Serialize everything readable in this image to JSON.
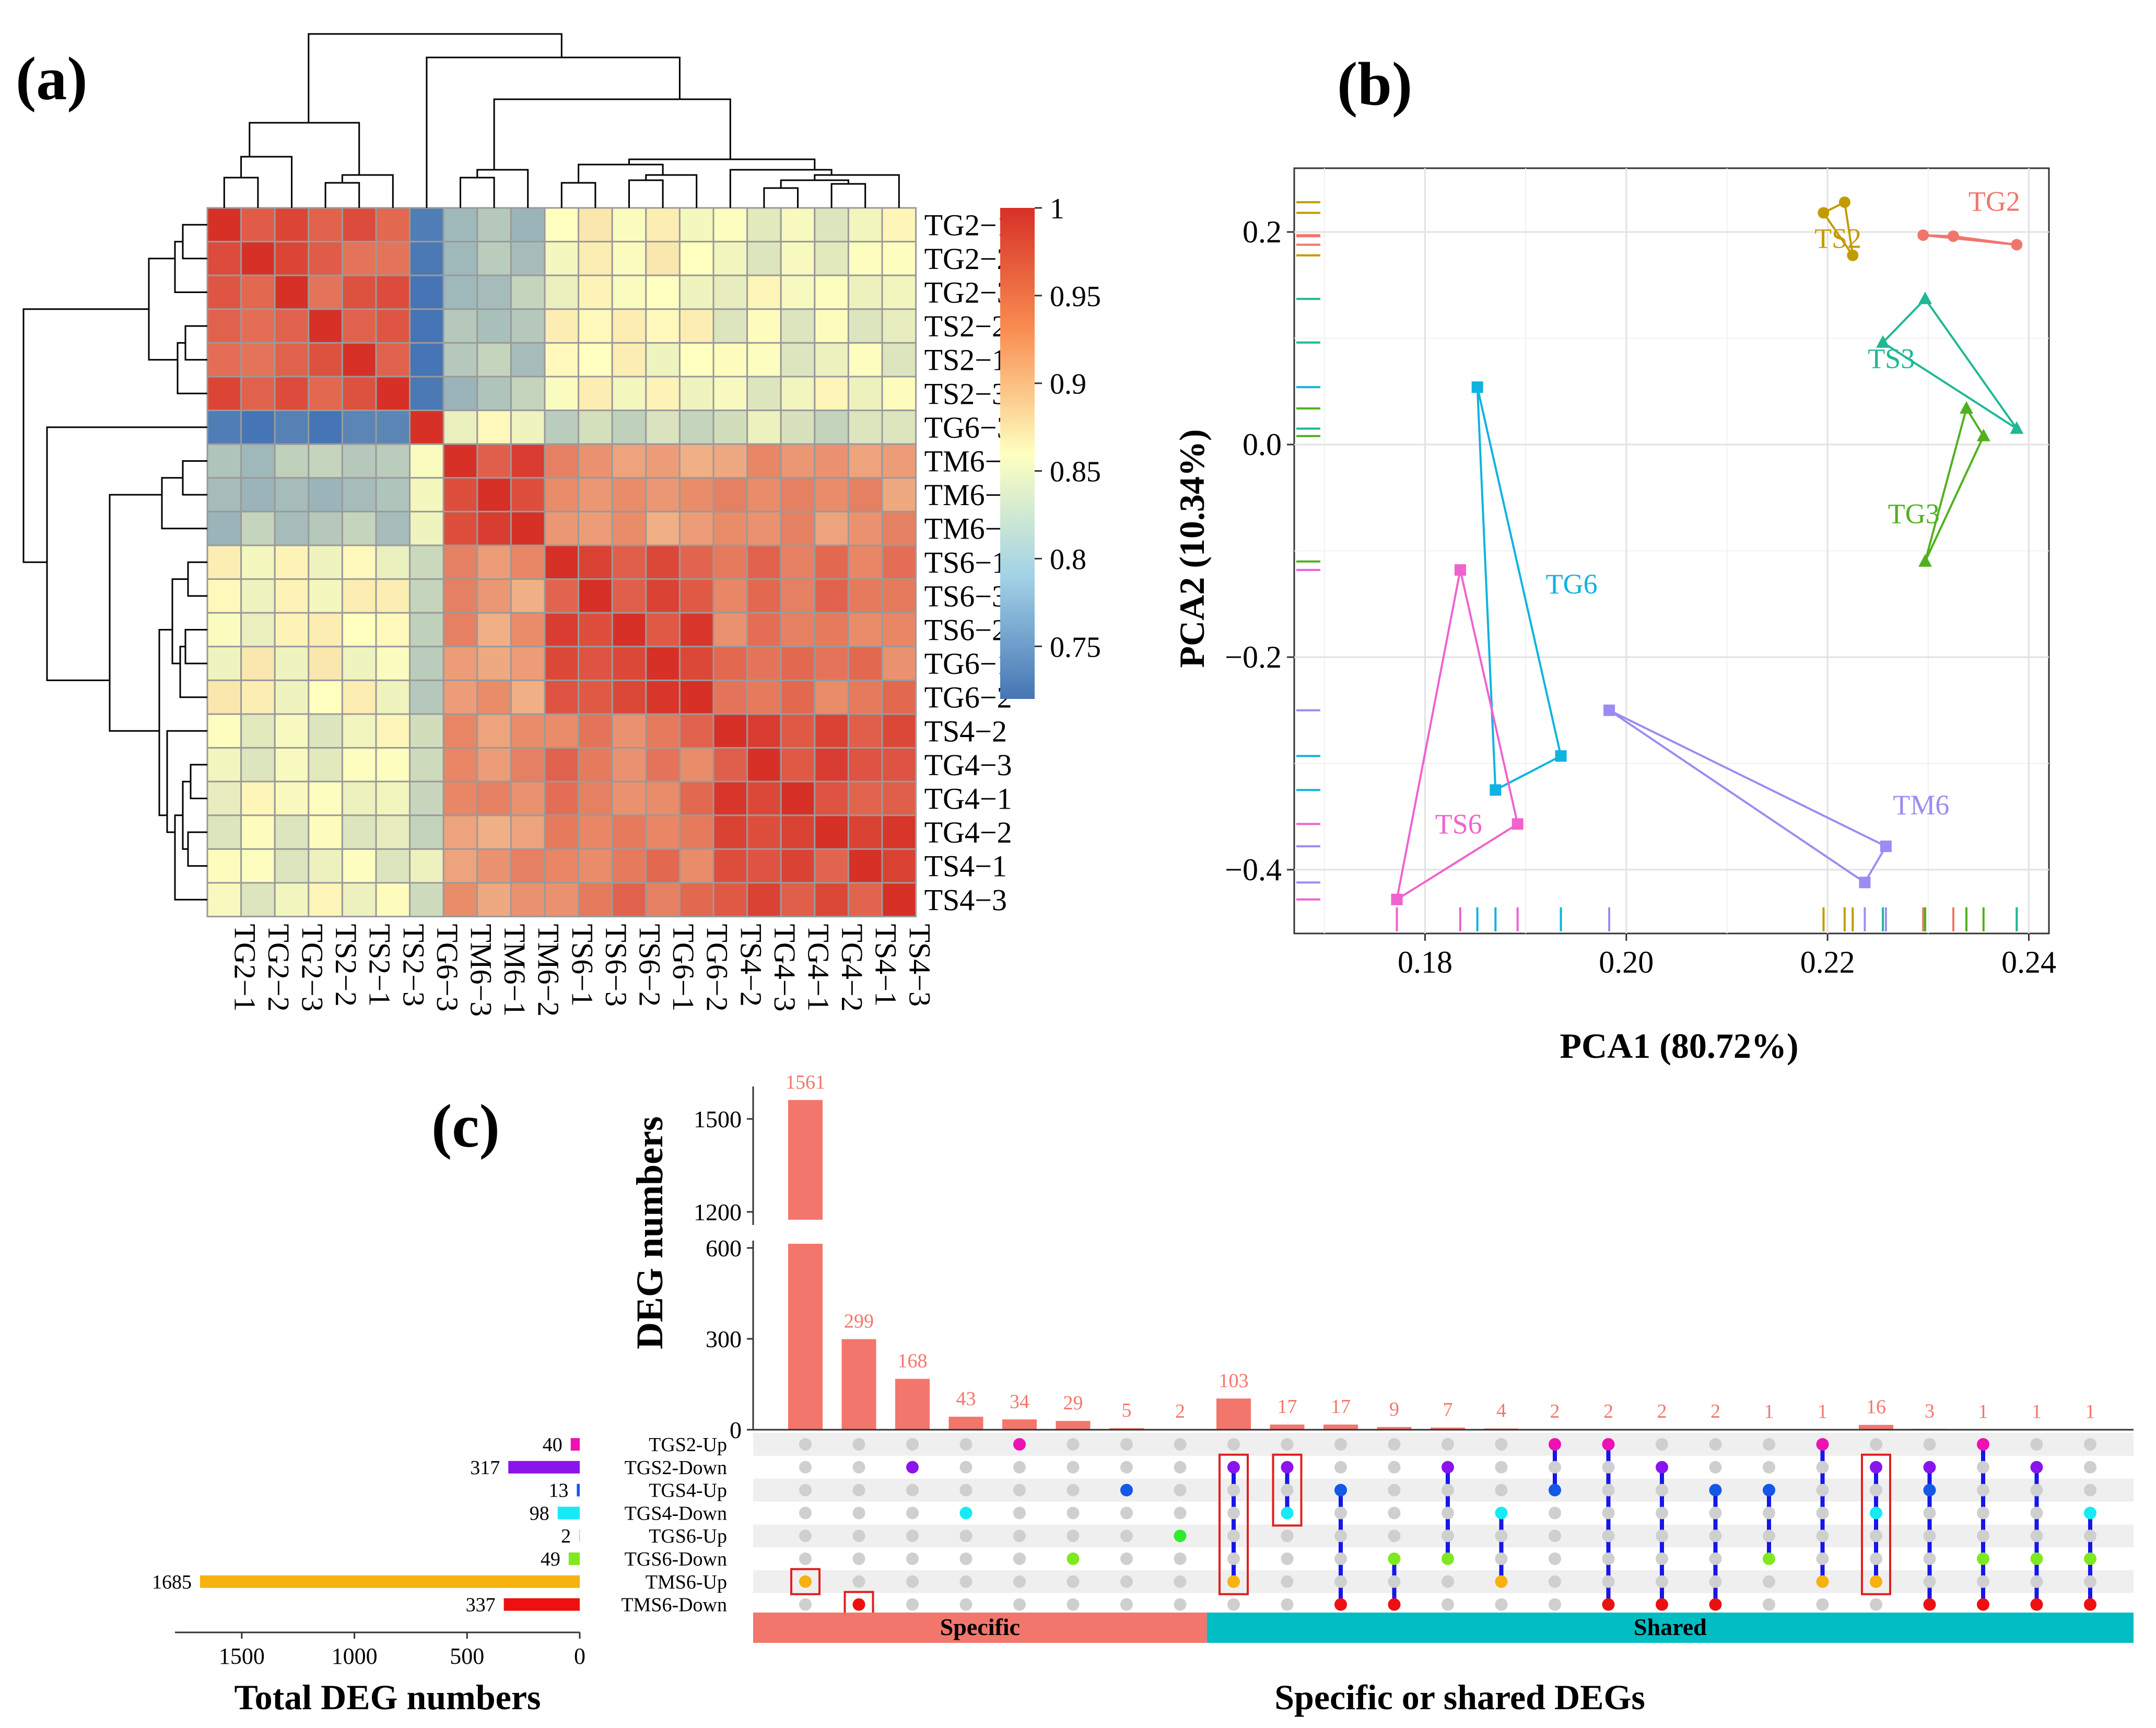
{
  "panels": {
    "a": {
      "label": "(a)"
    },
    "b": {
      "label": "(b)"
    },
    "c": {
      "label": "(c)"
    }
  },
  "chart_data": [
    {
      "type": "heatmap",
      "panel": "(a)",
      "samples": [
        "TG2−1",
        "TG2−2",
        "TG2−3",
        "TS2−2",
        "TS2−1",
        "TS2−3",
        "TG6−3",
        "TM6−3",
        "TM6−1",
        "TM6−2",
        "TS6−1",
        "TS6−3",
        "TS6−2",
        "TG6−1",
        "TG6−2",
        "TS4−2",
        "TG4−3",
        "TG4−1",
        "TG4−2",
        "TS4−1",
        "TS4−3"
      ],
      "groups": [
        [
          0,
          5
        ],
        [
          6,
          6
        ],
        [
          7,
          9
        ],
        [
          10,
          14
        ],
        [
          15,
          20
        ]
      ],
      "block_values": [
        [
          0.97,
          0.72,
          0.8,
          0.86,
          0.85
        ],
        [
          0.72,
          1.0,
          0.86,
          0.82,
          0.83
        ],
        [
          0.8,
          0.86,
          0.98,
          0.93,
          0.93
        ],
        [
          0.86,
          0.82,
          0.93,
          0.98,
          0.95
        ],
        [
          0.85,
          0.83,
          0.93,
          0.95,
          0.98
        ]
      ],
      "legend": {
        "ticks": [
          "1",
          "0.95",
          "0.9",
          "0.85",
          "0.8",
          "0.75"
        ],
        "values": [
          1,
          0.95,
          0.9,
          0.85,
          0.8,
          0.75
        ],
        "min": 0.72,
        "max": 1.0
      },
      "colors": {
        "low": "#4575b4",
        "mid": "#ffffbf",
        "high": "#d73027"
      }
    },
    {
      "type": "scatter",
      "panel": "(b)",
      "xlabel": "PCA1 (80.72%)",
      "ylabel": "PCA2 (10.34%)",
      "xlim": [
        0.167,
        0.242
      ],
      "ylim": [
        -0.46,
        0.26
      ],
      "xticks": [
        0.18,
        0.2,
        0.22,
        0.24
      ],
      "xtick_labels": [
        "0.18",
        "0.20",
        "0.22",
        "0.24"
      ],
      "yticks": [
        0.2,
        0.0,
        -0.2,
        -0.4
      ],
      "ytick_labels": [
        "0.2",
        "0.0",
        "−0.2",
        "−0.4"
      ],
      "series": [
        {
          "name": "TG2",
          "color": "#f0766d",
          "shape": "circle",
          "points": [
            [
              0.2295,
              0.197
            ],
            [
              0.2325,
              0.196
            ],
            [
              0.2388,
              0.188
            ]
          ],
          "label_pos": [
            0.234,
            0.22
          ]
        },
        {
          "name": "TS2",
          "color": "#c39b00",
          "shape": "circle",
          "points": [
            [
              0.2196,
              0.218
            ],
            [
              0.2217,
              0.228
            ],
            [
              0.2225,
              0.178
            ]
          ],
          "label_pos": [
            0.2187,
            0.185
          ]
        },
        {
          "name": "TS3",
          "color": "#1fb894",
          "shape": "triangle",
          "points": [
            [
              0.2255,
              0.096
            ],
            [
              0.2297,
              0.137
            ],
            [
              0.2388,
              0.015
            ]
          ],
          "label_pos": [
            0.224,
            0.072
          ]
        },
        {
          "name": "TG3",
          "color": "#50b01f",
          "shape": "triangle",
          "points": [
            [
              0.2297,
              -0.11
            ],
            [
              0.2338,
              0.034
            ],
            [
              0.2355,
              0.008
            ]
          ],
          "label_pos": [
            0.226,
            -0.074
          ]
        },
        {
          "name": "TG6",
          "color": "#0fb3e0",
          "shape": "square",
          "points": [
            [
              0.1852,
              0.054
            ],
            [
              0.187,
              -0.325
            ],
            [
              0.1935,
              -0.293
            ]
          ],
          "label_pos": [
            0.192,
            -0.14
          ]
        },
        {
          "name": "TS6",
          "color": "#f062d0",
          "shape": "square",
          "points": [
            [
              0.1772,
              -0.428
            ],
            [
              0.1835,
              -0.118
            ],
            [
              0.1892,
              -0.357
            ]
          ],
          "label_pos": [
            0.181,
            -0.366
          ]
        },
        {
          "name": "TM6",
          "color": "#9b8cf2",
          "shape": "square",
          "points": [
            [
              0.1983,
              -0.25
            ],
            [
              0.2237,
              -0.412
            ],
            [
              0.2258,
              -0.378
            ]
          ],
          "label_pos": [
            0.2265,
            -0.348
          ]
        }
      ]
    },
    {
      "type": "bar",
      "panel": "(c)",
      "subtype": "upset",
      "ylabel": "DEG numbers",
      "xlabel": "Specific or shared DEGs",
      "yticks_upper": [
        1200,
        1500
      ],
      "yticks_lower": [
        0,
        300,
        600
      ],
      "intersection_values": [
        1561,
        299,
        168,
        43,
        34,
        29,
        5,
        2,
        103,
        17,
        17,
        9,
        7,
        4,
        2,
        2,
        2,
        2,
        1,
        1,
        16,
        3,
        1,
        1,
        1
      ],
      "sets": [
        "TGS2-Up",
        "TGS2-Down",
        "TGS4-Up",
        "TGS4-Down",
        "TGS6-Up",
        "TGS6-Down",
        "TMS6-Up",
        "TMS6-Down"
      ],
      "set_sizes": [
        40,
        317,
        13,
        98,
        2,
        49,
        1685,
        337
      ],
      "set_colors": [
        "#ee11b4",
        "#8a14ec",
        "#1557e6",
        "#16eaf5",
        "#30ea30",
        "#80e81e",
        "#f5b210",
        "#ee1010"
      ],
      "set_size_axis": {
        "label": "Total DEG numbers",
        "ticks": [
          1500,
          1000,
          500,
          0
        ],
        "tick_labels": [
          "1500",
          "1000",
          "500",
          "0"
        ],
        "max": 1750
      },
      "memberships": [
        [
          6
        ],
        [
          7
        ],
        [
          1
        ],
        [
          3
        ],
        [
          0
        ],
        [
          5
        ],
        [
          2
        ],
        [
          4
        ],
        [
          1,
          6
        ],
        [
          1,
          3
        ],
        [
          2,
          7
        ],
        [
          5,
          7
        ],
        [
          1,
          5
        ],
        [
          3,
          6
        ],
        [
          0,
          2
        ],
        [
          0,
          7
        ],
        [
          1,
          7
        ],
        [
          2,
          7
        ],
        [
          2,
          5
        ],
        [
          0,
          6
        ],
        [
          1,
          3,
          6
        ],
        [
          1,
          2,
          7
        ],
        [
          0,
          5,
          7
        ],
        [
          1,
          5,
          7
        ],
        [
          3,
          5,
          7
        ]
      ],
      "highlight_boxes": [
        [
          0,
          6
        ],
        [
          1,
          7
        ],
        [
          8,
          1,
          6
        ],
        [
          9,
          1,
          3
        ],
        [
          20,
          1,
          6
        ]
      ],
      "category_bar": {
        "specific_label": "Specific",
        "shared_label": "Shared",
        "specific_count": 8,
        "specific_color": "#f3766c",
        "shared_color": "#00bdc3"
      }
    }
  ]
}
